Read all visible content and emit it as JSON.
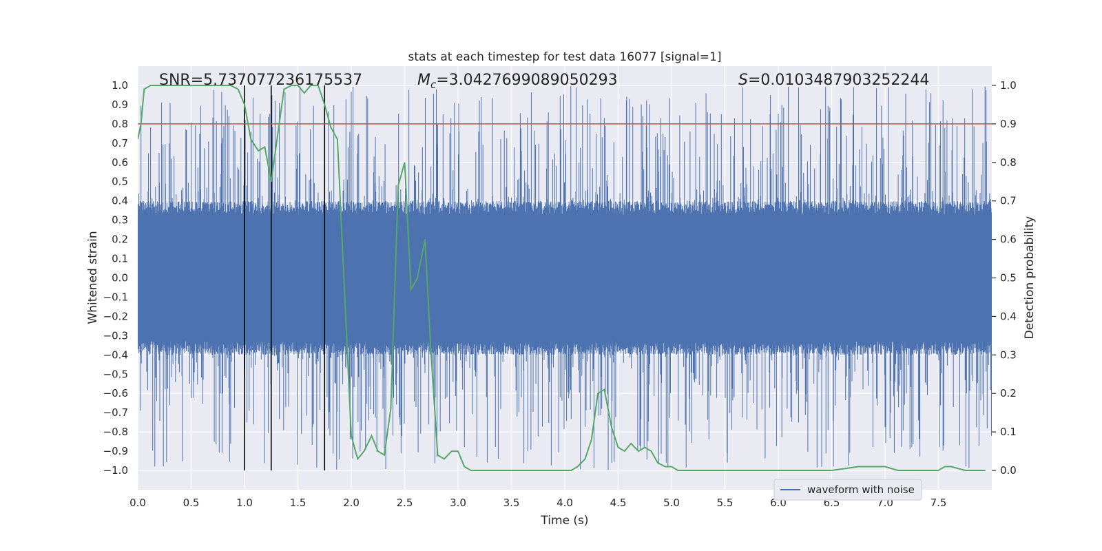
{
  "chart_data": {
    "type": "line",
    "title": "stats at each timestep for test data 16077 [signal=1]",
    "xlabel": "Time (s)",
    "ylabel_left": "Whitened strain",
    "ylabel_right": "Detection probability",
    "xlim": [
      0.0,
      8.0
    ],
    "ylim_left": [
      -1.1,
      1.1
    ],
    "ylim_right": [
      -0.05,
      1.05
    ],
    "x_ticks": [
      "0.0",
      "0.5",
      "1.0",
      "1.5",
      "2.0",
      "2.5",
      "3.0",
      "3.5",
      "4.0",
      "4.5",
      "5.0",
      "5.5",
      "6.0",
      "6.5",
      "7.0",
      "7.5"
    ],
    "y_ticks_left": [
      "1.0",
      "0.9",
      "0.8",
      "0.7",
      "0.6",
      "0.5",
      "0.4",
      "0.3",
      "0.2",
      "0.1",
      "0.0",
      "−0.1",
      "−0.2",
      "−0.3",
      "−0.4",
      "−0.5",
      "−0.6",
      "−0.7",
      "−0.8",
      "−0.9",
      "−1.0"
    ],
    "y_ticks_right": [
      "1.0",
      "0.9",
      "0.8",
      "0.7",
      "0.6",
      "0.5",
      "0.4",
      "0.3",
      "0.2",
      "0.1",
      "0.0"
    ],
    "grid": true,
    "legend": {
      "position": "lower-right",
      "entries": [
        "waveform with noise"
      ]
    },
    "annotations": {
      "snr": "SNR=5.737077236175537",
      "mc_symbol": "M",
      "mc_sub": "c",
      "mc_value": "=3.0427699089050293",
      "s_symbol": "S",
      "s_value": "=0.0103487903252244"
    },
    "threshold": {
      "axis": "right",
      "value": 0.9,
      "color": "#c44e52"
    },
    "vertical_markers": [
      1.0,
      1.25,
      1.75
    ],
    "series": [
      {
        "name": "waveform with noise",
        "axis": "left",
        "color": "#4c72b0",
        "description_of_envelope": {
          "core_min": -0.4,
          "core_max": 0.4,
          "spike_max": 1.0,
          "spike_min": -1.0
        }
      },
      {
        "axis": "right",
        "color": "#55a868",
        "x": [
          0.0,
          0.03,
          0.06,
          0.12,
          0.2,
          0.3,
          0.4,
          0.5,
          0.6,
          0.7,
          0.8,
          0.87,
          0.94,
          1.0,
          1.06,
          1.13,
          1.19,
          1.25,
          1.3,
          1.37,
          1.44,
          1.5,
          1.56,
          1.62,
          1.69,
          1.75,
          1.81,
          1.87,
          2.0,
          2.06,
          2.12,
          2.19,
          2.25,
          2.31,
          2.37,
          2.44,
          2.5,
          2.56,
          2.62,
          2.69,
          2.75,
          2.81,
          2.87,
          2.94,
          3.0,
          3.06,
          3.12,
          3.19,
          3.25,
          3.37,
          3.5,
          3.56,
          3.62,
          3.75,
          3.87,
          3.94,
          4.0,
          4.06,
          4.12,
          4.19,
          4.25,
          4.31,
          4.37,
          4.44,
          4.5,
          4.56,
          4.62,
          4.69,
          4.75,
          4.81,
          4.87,
          4.94,
          5.0,
          5.06,
          5.12,
          5.25,
          5.5,
          5.75,
          6.0,
          6.25,
          6.5,
          6.75,
          6.87,
          6.94,
          7.0,
          7.12,
          7.25,
          7.37,
          7.5,
          7.56,
          7.62,
          7.75,
          7.87,
          7.94
        ],
        "values": [
          0.86,
          0.9,
          0.99,
          1.0,
          1.0,
          1.0,
          1.0,
          1.0,
          1.0,
          1.0,
          1.0,
          1.0,
          0.99,
          0.95,
          0.86,
          0.83,
          0.84,
          0.75,
          0.85,
          0.99,
          1.0,
          1.0,
          0.98,
          1.0,
          1.0,
          0.95,
          0.89,
          0.86,
          0.09,
          0.03,
          0.05,
          0.09,
          0.05,
          0.04,
          0.16,
          0.74,
          0.8,
          0.47,
          0.5,
          0.6,
          0.29,
          0.04,
          0.03,
          0.05,
          0.05,
          0.01,
          0.0,
          0.0,
          0.0,
          0.0,
          0.0,
          0.0,
          0.0,
          0.0,
          0.0,
          0.0,
          0.0,
          0.0,
          0.01,
          0.03,
          0.08,
          0.2,
          0.21,
          0.11,
          0.06,
          0.05,
          0.07,
          0.05,
          0.06,
          0.05,
          0.02,
          0.01,
          0.01,
          0.0,
          0.0,
          0.0,
          0.0,
          0.0,
          0.0,
          0.0,
          0.0,
          0.01,
          0.01,
          0.01,
          0.01,
          0.0,
          0.0,
          0.0,
          0.0,
          0.01,
          0.01,
          0.0,
          0.0,
          0.0
        ]
      }
    ]
  }
}
